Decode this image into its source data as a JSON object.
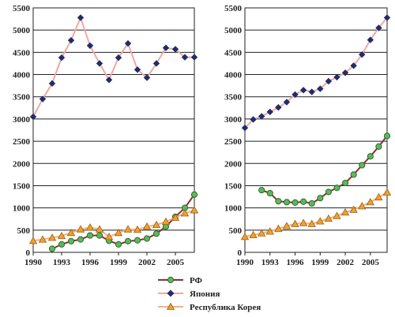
{
  "chart_data": [
    {
      "type": "line",
      "x": [
        1990,
        1991,
        1992,
        1993,
        1994,
        1995,
        1996,
        1997,
        1998,
        1999,
        2000,
        2001,
        2002,
        2003,
        2004,
        2005,
        2006,
        2007
      ],
      "xticks": [
        "1990",
        "1993",
        "1996",
        "1999",
        "2002",
        "2005"
      ],
      "yticks": [
        "0",
        "500",
        "1000",
        "1500",
        "2000",
        "2500",
        "3000",
        "3500",
        "4000",
        "4500",
        "5000",
        "5500"
      ],
      "ylim": [
        0,
        5500
      ],
      "xlim": [
        1990,
        2007
      ],
      "grid": "horizontal",
      "series": [
        {
          "name": "РФ",
          "values": [
            null,
            null,
            80,
            180,
            250,
            290,
            380,
            380,
            260,
            180,
            250,
            270,
            310,
            420,
            580,
            800,
            1000,
            1300
          ]
        },
        {
          "name": "Япония",
          "values": [
            3050,
            3450,
            3800,
            4380,
            4770,
            5280,
            4650,
            4250,
            3880,
            4380,
            4700,
            4110,
            3930,
            4250,
            4600,
            4570,
            4390,
            4390
          ]
        },
        {
          "name": "Республика Корея",
          "values": [
            260,
            290,
            330,
            370,
            440,
            520,
            560,
            520,
            350,
            440,
            520,
            510,
            580,
            620,
            690,
            780,
            880,
            950
          ]
        }
      ]
    },
    {
      "type": "line",
      "x": [
        1990,
        1991,
        1992,
        1993,
        1994,
        1995,
        1996,
        1997,
        1998,
        1999,
        2000,
        2001,
        2002,
        2003,
        2004,
        2005,
        2006,
        2007
      ],
      "xticks": [
        "1990",
        "1993",
        "1996",
        "1999",
        "2002",
        "2005"
      ],
      "yticks": [
        "0",
        "500",
        "1000",
        "1500",
        "2000",
        "2500",
        "3000",
        "3500",
        "4000",
        "4500",
        "5000",
        "5500"
      ],
      "ylim": [
        0,
        5500
      ],
      "xlim": [
        1990,
        2007
      ],
      "grid": "horizontal",
      "series": [
        {
          "name": "РФ",
          "values": [
            null,
            null,
            1400,
            1330,
            1150,
            1130,
            1120,
            1140,
            1100,
            1220,
            1360,
            1450,
            1560,
            1750,
            1960,
            2160,
            2380,
            2620
          ]
        },
        {
          "name": "Япония",
          "values": [
            2800,
            2990,
            3060,
            3160,
            3260,
            3380,
            3550,
            3650,
            3610,
            3680,
            3850,
            3940,
            4040,
            4200,
            4450,
            4780,
            5050,
            5280
          ]
        },
        {
          "name": "Республика Корея",
          "values": [
            350,
            390,
            430,
            470,
            530,
            590,
            640,
            660,
            640,
            700,
            760,
            820,
            900,
            960,
            1040,
            1130,
            1240,
            1350
          ]
        }
      ]
    }
  ],
  "legend": [
    {
      "label": "РФ",
      "line_color": "#8b2e2e",
      "marker": "circle",
      "marker_color": "#5cb85c"
    },
    {
      "label": "Япония",
      "line_color": "#f4a79d",
      "marker": "diamond",
      "marker_color": "#1f2d6b"
    },
    {
      "label": "Республика Корея",
      "line_color": "#f4b183",
      "marker": "triangle",
      "marker_color": "#f0a030"
    }
  ]
}
